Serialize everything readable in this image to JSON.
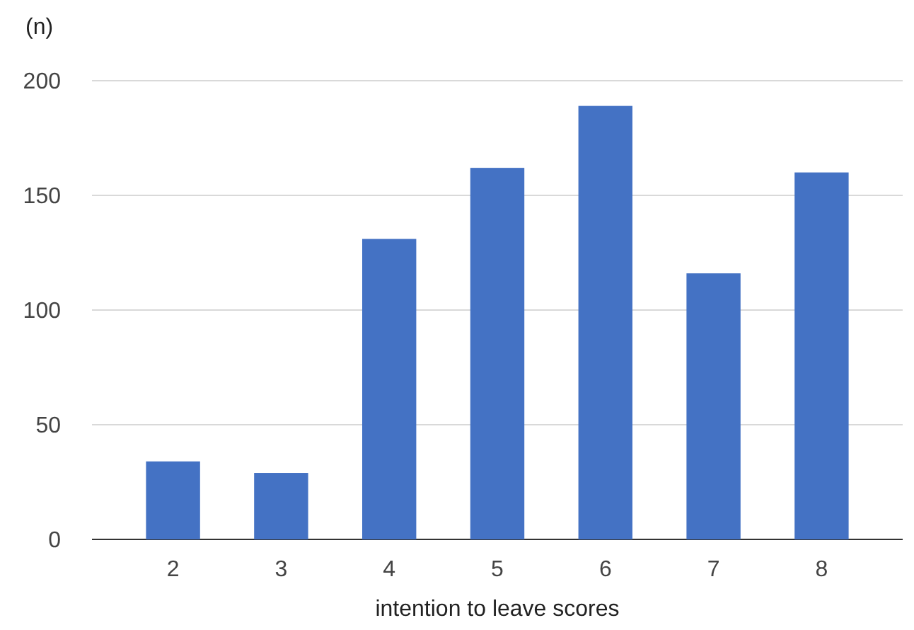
{
  "chart_data": {
    "type": "bar",
    "ylabel": "(n)",
    "xlabel": "intention to leave scores",
    "categories": [
      "2",
      "3",
      "4",
      "5",
      "6",
      "7",
      "8"
    ],
    "values": [
      34,
      29,
      131,
      162,
      189,
      116,
      160
    ],
    "color": "#4472c4",
    "ylim": [
      0,
      200
    ],
    "yticks": [
      0,
      50,
      100,
      150,
      200
    ],
    "grid": "y"
  }
}
